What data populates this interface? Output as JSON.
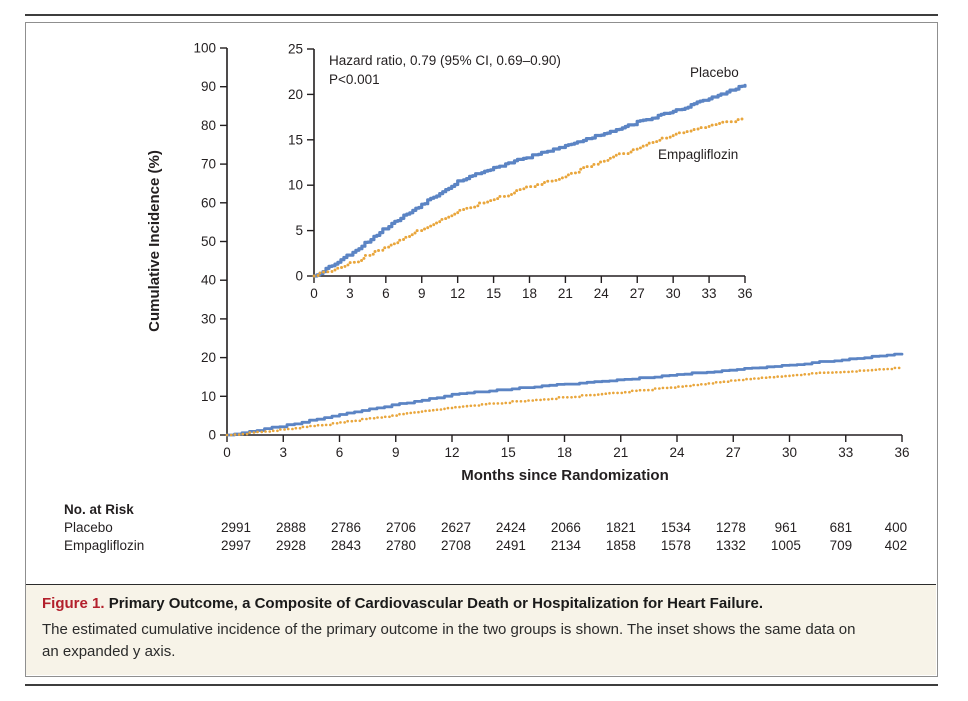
{
  "figure": {
    "caption_label": "Figure 1.",
    "caption_title": "Primary Outcome, a Composite of Cardiovascular Death or Hospitalization for Heart Failure.",
    "caption_body": "The estimated cumulative incidence of the primary outcome in the two groups is shown. The inset shows the same data on an expanded y axis."
  },
  "chart_data": {
    "type": "line",
    "title": "",
    "xlabel": "Months since Randomization",
    "ylabel": "Cumulative Incidence (%)",
    "annotation": {
      "line1": "Hazard ratio, 0.79 (95% CI, 0.69–0.90)",
      "line2": "P<0.001"
    },
    "x_ticks": [
      0,
      3,
      6,
      9,
      12,
      15,
      18,
      21,
      24,
      27,
      30,
      33,
      36
    ],
    "main_axis": {
      "ylim": [
        0,
        100
      ],
      "y_ticks": [
        0,
        10,
        20,
        30,
        40,
        50,
        60,
        70,
        80,
        90,
        100
      ]
    },
    "inset_axis": {
      "ylim": [
        0,
        25
      ],
      "y_ticks": [
        0,
        5,
        10,
        15,
        20,
        25
      ]
    },
    "months": [
      0,
      3,
      6,
      9,
      12,
      15,
      18,
      21,
      24,
      27,
      30,
      33,
      36
    ],
    "series": [
      {
        "name": "Placebo",
        "color": "#5b84c4",
        "style": "solid",
        "values": [
          0,
          2.4,
          5.3,
          7.9,
          10.4,
          11.9,
          13.1,
          14.3,
          15.6,
          16.9,
          18.1,
          19.5,
          21.0
        ]
      },
      {
        "name": "Empagliflozin",
        "color": "#e9a63c",
        "style": "dotted",
        "values": [
          0,
          1.4,
          3.2,
          5.2,
          7.1,
          8.5,
          9.8,
          11.0,
          12.6,
          14.1,
          15.5,
          16.5,
          17.4
        ]
      }
    ],
    "risk_table": {
      "title": "No. at Risk",
      "rows": [
        {
          "name": "Placebo",
          "counts": [
            2991,
            2888,
            2786,
            2706,
            2627,
            2424,
            2066,
            1821,
            1534,
            1278,
            961,
            681,
            400
          ]
        },
        {
          "name": "Empagliflozin",
          "counts": [
            2997,
            2928,
            2843,
            2780,
            2708,
            2491,
            2134,
            1858,
            1578,
            1332,
            1005,
            709,
            402
          ]
        }
      ]
    }
  }
}
